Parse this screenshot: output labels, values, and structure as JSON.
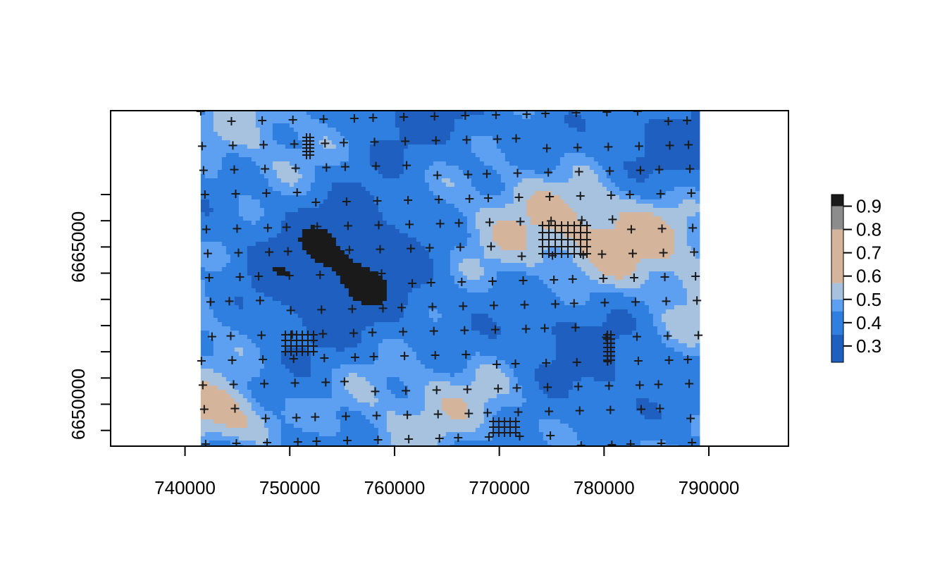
{
  "chart_data": {
    "type": "heatmap",
    "x_ticks": [
      "740000",
      "750000",
      "760000",
      "770000",
      "780000",
      "790000"
    ],
    "x_tick_values": [
      740000,
      750000,
      760000,
      770000,
      780000,
      790000
    ],
    "y_ticks": [
      "6650000",
      "6665000"
    ],
    "y_tick_values": [
      6650000,
      6665000
    ],
    "y_minor_tick_values": [
      6647500,
      6652500,
      6655000,
      6657500,
      6660000,
      6662500,
      6667500,
      6670000
    ],
    "xlim": [
      732900,
      797600
    ],
    "ylim": [
      6646000,
      6678000
    ],
    "raster_extent": {
      "x": [
        741500,
        789000
      ],
      "y": [
        6646000,
        6678000
      ]
    },
    "legend": {
      "ticks": [
        "0.3",
        "0.4",
        "0.5",
        "0.6",
        "0.7",
        "0.8",
        "0.9"
      ],
      "tick_values": [
        0.3,
        0.4,
        0.5,
        0.6,
        0.7,
        0.8,
        0.9
      ],
      "range": [
        0.23,
        0.95
      ],
      "colors": [
        {
          "min": 0.23,
          "max": 0.35,
          "color": "#1e5fbf"
        },
        {
          "min": 0.35,
          "max": 0.45,
          "color": "#2f7fe0"
        },
        {
          "min": 0.45,
          "max": 0.5,
          "color": "#5d9ff0"
        },
        {
          "min": 0.5,
          "max": 0.57,
          "color": "#a7c2de"
        },
        {
          "min": 0.57,
          "max": 0.8,
          "color": "#d4b49b"
        },
        {
          "min": 0.8,
          "max": 0.9,
          "color": "#8c8c8c"
        },
        {
          "min": 0.9,
          "max": 0.95,
          "color": "#1a1a1a"
        }
      ],
      "placement": "right"
    },
    "points_marker": "+",
    "points_color": "#1a1a1a",
    "grid": false,
    "title": "",
    "xlabel": "",
    "ylabel": ""
  }
}
